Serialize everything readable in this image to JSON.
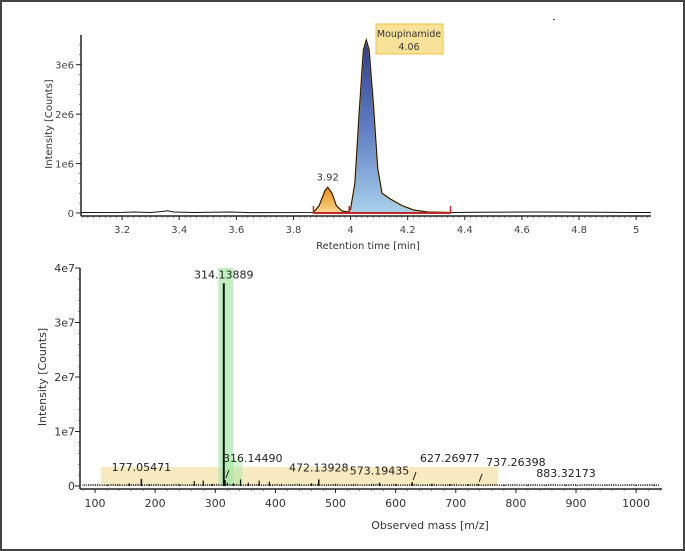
{
  "chart_data": [
    {
      "type": "line",
      "xlabel": "Retention time [min]",
      "ylabel": "Intensity [Counts]",
      "xlim": [
        3.056,
        5.052
      ],
      "ylim": [
        0,
        3600000.0
      ],
      "x_ticks": [
        3.2,
        3.4,
        3.6,
        3.8,
        4,
        4.2,
        4.4,
        4.6,
        4.8,
        5
      ],
      "x_tick_labels": [
        "3.2",
        "3.4",
        "3.6",
        "3.8",
        "4",
        "4.2",
        "4.4",
        "4.6",
        "4.8",
        "5"
      ],
      "y_ticks": [
        0,
        1000000.0,
        2000000.0,
        3000000.0
      ],
      "y_tick_labels": [
        "0",
        "1e6",
        "2e6",
        "3e6"
      ],
      "trace": [
        [
          3.056,
          10000.0
        ],
        [
          3.2,
          12000.0
        ],
        [
          3.24,
          20000.0
        ],
        [
          3.3,
          10000.0
        ],
        [
          3.34,
          30000.0
        ],
        [
          3.36,
          45000.0
        ],
        [
          3.38,
          20000.0
        ],
        [
          3.45,
          10000.0
        ],
        [
          3.58,
          20000.0
        ],
        [
          3.65,
          8000.0
        ],
        [
          3.87,
          10000.0
        ],
        [
          3.89,
          150000.0
        ],
        [
          3.91,
          450000.0
        ],
        [
          3.92,
          520000.0
        ],
        [
          3.935,
          400000.0
        ],
        [
          3.95,
          150000.0
        ],
        [
          3.97,
          40000.0
        ],
        [
          3.99,
          20000.0
        ],
        [
          4.0,
          80000.0
        ],
        [
          4.015,
          600000.0
        ],
        [
          4.03,
          2000000.0
        ],
        [
          4.045,
          3300000.0
        ],
        [
          4.055,
          3500000.0
        ],
        [
          4.065,
          3300000.0
        ],
        [
          4.08,
          2200000.0
        ],
        [
          4.095,
          900000.0
        ],
        [
          4.11,
          400000.0
        ],
        [
          4.14,
          280000.0
        ],
        [
          4.18,
          150000.0
        ],
        [
          4.22,
          60000.0
        ],
        [
          4.27,
          20000.0
        ],
        [
          4.35,
          10000.0
        ],
        [
          4.45,
          15000.0
        ],
        [
          4.65,
          20000.0
        ],
        [
          4.85,
          15000.0
        ],
        [
          5.052,
          10000.0
        ]
      ],
      "peaks": [
        {
          "label": "3.92",
          "rt": 3.92,
          "start": 3.87,
          "end": 3.995,
          "color": "#f0a020"
        },
        {
          "label": "Moupinamide",
          "rt_label": "4.06",
          "rt": 4.055,
          "start": 3.995,
          "end": 4.35,
          "color": "#3a4ea0"
        }
      ],
      "integration_baseline": [
        3.87,
        4.35
      ],
      "integration_marks": [
        3.87,
        3.995,
        4.35
      ],
      "colors": {
        "baseline": "#c0282a",
        "outline": "#f0a020",
        "trace": "#111111",
        "label_box": "#f8e29a"
      }
    },
    {
      "type": "bar",
      "xlabel": "Observed mass [m/z]",
      "ylabel": "Intensity [Counts]",
      "xlim": [
        75,
        1043
      ],
      "ylim": [
        0,
        40000000.0
      ],
      "x_ticks": [
        100,
        200,
        300,
        400,
        500,
        600,
        700,
        800,
        900,
        1000
      ],
      "x_tick_labels": [
        "100",
        "200",
        "300",
        "400",
        "500",
        "600",
        "700",
        "800",
        "900",
        "1000"
      ],
      "y_ticks": [
        0,
        10000000.0,
        20000000.0,
        30000000.0,
        40000000.0
      ],
      "y_tick_labels": [
        "0",
        "1e7",
        "2e7",
        "3e7",
        "4e7"
      ],
      "labeled_peaks": [
        {
          "mz": 177.05471,
          "label": "177.05471",
          "intensity": 1300000.0
        },
        {
          "mz": 314.13889,
          "label": "314.13889",
          "intensity": 37200000.0
        },
        {
          "mz": 316.1449,
          "label": "316.14490",
          "intensity": 1100000.0
        },
        {
          "mz": 472.13928,
          "label": "472.13928",
          "intensity": 1200000.0
        },
        {
          "mz": 573.19435,
          "label": "573.19435",
          "intensity": 600000.0
        },
        {
          "mz": 627.26977,
          "label": "627.26977",
          "intensity": 700000.0
        },
        {
          "mz": 737.26398,
          "label": "737.26398",
          "intensity": 400000.0
        },
        {
          "mz": 883.32173,
          "label": "883.32173",
          "intensity": 200000.0
        }
      ],
      "minor_peaks": [
        [
          120,
          200000.0
        ],
        [
          140,
          250000.0
        ],
        [
          157,
          500000.0
        ],
        [
          190,
          300000.0
        ],
        [
          215,
          300000.0
        ],
        [
          240,
          300000.0
        ],
        [
          265,
          900000.0
        ],
        [
          280,
          1000000.0
        ],
        [
          295,
          400000.0
        ],
        [
          320,
          600000.0
        ],
        [
          330,
          500000.0
        ],
        [
          342,
          1200000.0
        ],
        [
          355,
          600000.0
        ],
        [
          373,
          1000000.0
        ],
        [
          390,
          800000.0
        ],
        [
          410,
          400000.0
        ],
        [
          440,
          400000.0
        ],
        [
          460,
          500000.0
        ],
        [
          500,
          400000.0
        ],
        [
          530,
          300000.0
        ],
        [
          560,
          400000.0
        ],
        [
          600,
          350000.0
        ],
        [
          660,
          400000.0
        ],
        [
          690,
          350000.0
        ],
        [
          720,
          300000.0
        ],
        [
          780,
          200000.0
        ],
        [
          820,
          200000.0
        ],
        [
          850,
          150000.0
        ],
        [
          900,
          150000.0
        ],
        [
          950,
          150000.0
        ],
        [
          1000,
          150000.0
        ],
        [
          1030,
          150000.0
        ]
      ],
      "highlight_band": [
        110,
        770
      ],
      "highlight_main": [
        305,
        330
      ],
      "colors": {
        "band": "#f5e4b0",
        "main": "#a8e8a8",
        "stick": "#111111"
      }
    }
  ]
}
